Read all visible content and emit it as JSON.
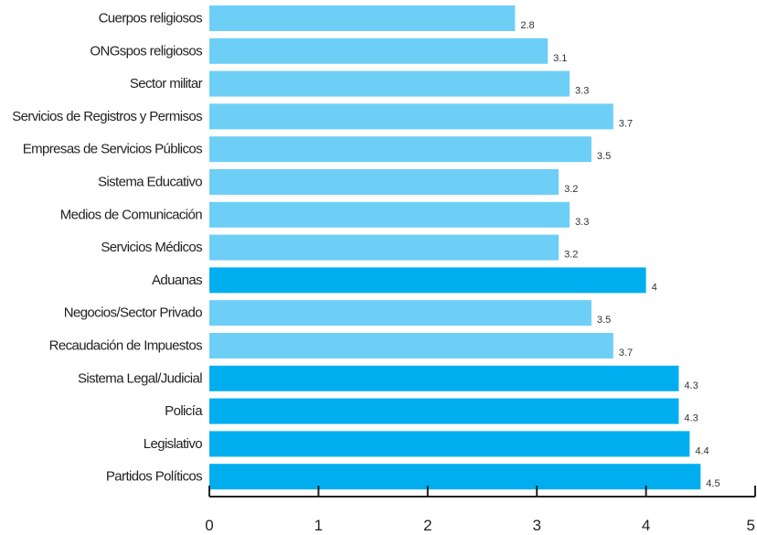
{
  "chart_data": {
    "type": "bar",
    "orientation": "horizontal",
    "title": "",
    "xlabel": "",
    "ylabel": "",
    "xlim": [
      0,
      5
    ],
    "x_ticks": [
      "0",
      "1",
      "2",
      "3",
      "4",
      "5"
    ],
    "grid": false,
    "categories": [
      "Cuerpos religiosos",
      "ONGspos religiosos",
      "Sector militar",
      "Servicios de Registros y Permisos",
      "Empresas de Servicios Públicos",
      "Sistema Educativo",
      "Medios de Comunicación",
      "Servicios Médicos",
      "Aduanas",
      "Negocios/Sector Privado",
      "Recaudación de Impuestos",
      "Sistema Legal/Judicial",
      "Policía",
      "Legislativo",
      "Partidos Políticos"
    ],
    "values": [
      2.8,
      3.1,
      3.3,
      3.7,
      3.5,
      3.2,
      3.3,
      3.2,
      4,
      3.5,
      3.7,
      4.3,
      4.3,
      4.4,
      4.5
    ],
    "value_labels": [
      "2.8",
      "3.1",
      "3.3",
      "3.7",
      "3.5",
      "3.2",
      "3.3",
      "3.2",
      "4",
      "3.5",
      "3.7",
      "4.3",
      "4.3",
      "4.4",
      "4.5"
    ],
    "highlight_threshold": 4,
    "colors": {
      "normal": "#6dcff6",
      "highlight": "#00aeef",
      "axis": "#222222"
    }
  }
}
